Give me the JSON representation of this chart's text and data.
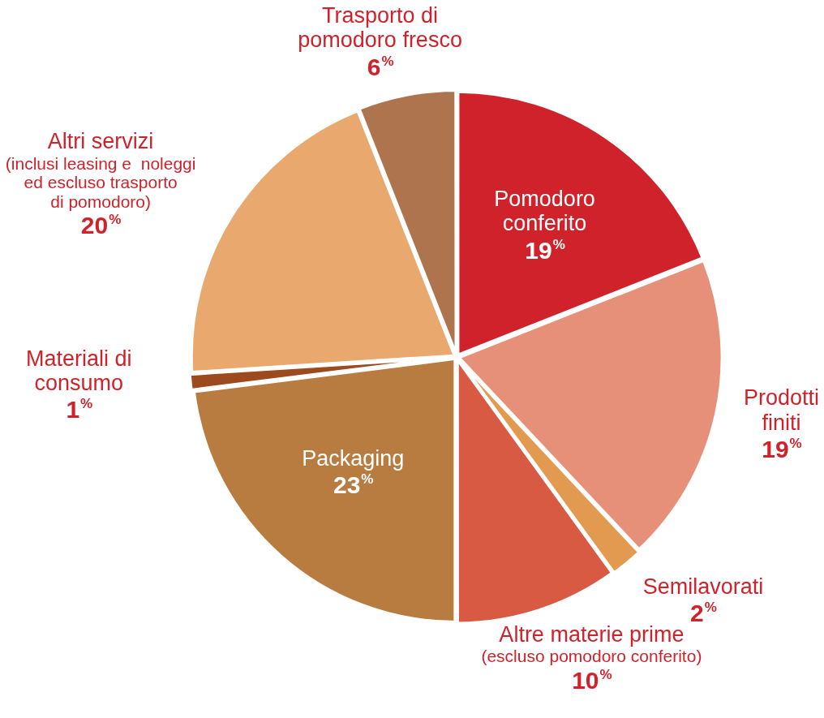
{
  "chart_data": {
    "type": "pie",
    "categories": [
      "Pomodoro\nconferito",
      "Prodotti\nfiniti",
      "Semilavorati",
      "Altre materie prime\n(escluso pomodoro conferito)",
      "Packaging",
      "Materiali di\nconsumo",
      "Altri servizi\n(inclusi leasing e  noleggi\ned escluso trasporto\ndi pomodoro)",
      "Trasporto di\npomodoro fresco"
    ],
    "values": [
      19,
      19,
      2,
      10,
      23,
      1,
      20,
      6
    ],
    "value_labels": [
      "19%",
      "19%",
      "2%",
      "10%",
      "23%",
      "1%",
      "20%",
      "6%"
    ],
    "colors": [
      "#d0222a",
      "#e6907a",
      "#e29a50",
      "#d95a42",
      "#b97c40",
      "#9c4a1e",
      "#e8a86e",
      "#ae744e"
    ],
    "legend": false
  }
}
